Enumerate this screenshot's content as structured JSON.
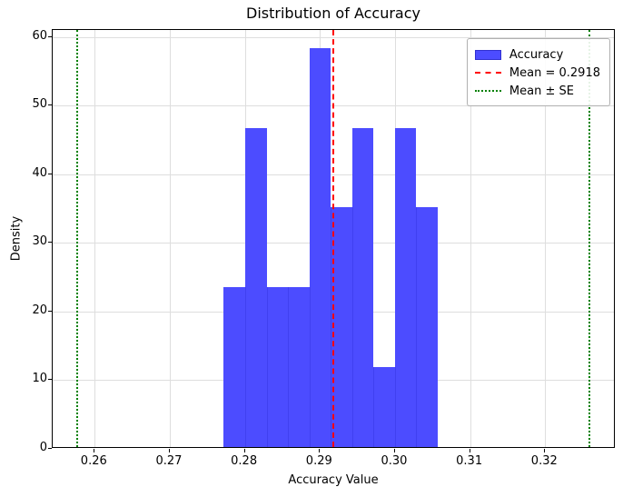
{
  "chart_data": {
    "type": "bar",
    "subtype": "histogram",
    "title": "Distribution of Accuracy",
    "xlabel": "Accuracy Value",
    "ylabel": "Density",
    "xlim": [
      0.2544,
      0.3294
    ],
    "ylim": [
      0,
      61
    ],
    "grid": true,
    "legend_position": "upper-right",
    "xticks": [
      0.26,
      0.27,
      0.28,
      0.29,
      0.3,
      0.31,
      0.32
    ],
    "xtick_labels": [
      "0.26",
      "0.27",
      "0.28",
      "0.29",
      "0.30",
      "0.31",
      "0.32"
    ],
    "yticks": [
      0,
      10,
      20,
      30,
      40,
      50,
      60
    ],
    "ytick_labels": [
      "0",
      "10",
      "20",
      "30",
      "40",
      "50",
      "60"
    ],
    "histogram": {
      "name": "Accuracy",
      "bin_edges": [
        0.2771,
        0.28,
        0.2829,
        0.2857,
        0.2886,
        0.2914,
        0.2943,
        0.2971,
        0.3,
        0.3028,
        0.3057
      ],
      "densities": [
        23.3,
        46.5,
        23.3,
        23.3,
        58.1,
        34.9,
        46.5,
        11.6,
        46.5,
        34.9
      ],
      "counts": [
        2,
        4,
        2,
        2,
        5,
        3,
        4,
        1,
        4,
        3
      ]
    },
    "vlines": [
      {
        "name": "mean-line",
        "x": 0.2918,
        "style": "dashed",
        "color": "#ff0000"
      },
      {
        "name": "mean-minus-se-line",
        "x": 0.2577,
        "style": "dotted",
        "color": "#008000"
      },
      {
        "name": "mean-plus-se-line",
        "x": 0.3259,
        "style": "dotted",
        "color": "#008000"
      }
    ],
    "stats": {
      "mean_label_value": "0.2918"
    },
    "legend": [
      {
        "label": "Accuracy",
        "handle": "patch"
      },
      {
        "label": "Mean = 0.2918",
        "handle": "dashed-line"
      },
      {
        "label": "Mean ± SE",
        "handle": "dotted-line"
      }
    ],
    "colors": {
      "bar_fill": "#4c4cff",
      "bar_seam": "#4040f0",
      "mean_line": "#ff0000",
      "se_line": "#008000",
      "grid": "#dedede",
      "spine": "#000000",
      "text": "#000000",
      "legend_border": "#b0b0b0"
    }
  }
}
